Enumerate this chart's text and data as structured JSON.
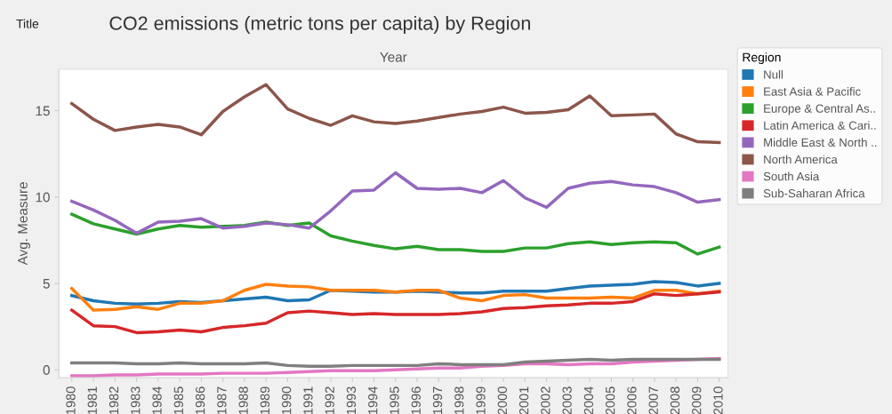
{
  "chart_data": {
    "type": "line",
    "title": "CO2 emissions (metric tons per capita) by Region",
    "xlabel": "Year",
    "ylabel": "Avg. Measure",
    "legend_title": "Region",
    "annotations": [
      "Title"
    ],
    "categories": [
      "1980",
      "1981",
      "1982",
      "1983",
      "1984",
      "1985",
      "1986",
      "1987",
      "1988",
      "1989",
      "1990",
      "1991",
      "1992",
      "1993",
      "1994",
      "1995",
      "1996",
      "1997",
      "1998",
      "1999",
      "2000",
      "2001",
      "2002",
      "2003",
      "2004",
      "2005",
      "2006",
      "2007",
      "2008",
      "2009",
      "2010"
    ],
    "ylim": [
      -0.45,
      17.4
    ],
    "yticks": [
      0,
      5,
      10,
      15
    ],
    "grid": false,
    "legend": "right",
    "marker": "none",
    "line_style": "solid",
    "series": [
      {
        "name": "Null",
        "color": "#1f77b4",
        "values": [
          4.3,
          4.0,
          3.85,
          3.8,
          3.85,
          3.95,
          3.9,
          4.0,
          4.1,
          4.2,
          4.0,
          4.05,
          4.6,
          4.55,
          4.5,
          4.5,
          4.55,
          4.5,
          4.45,
          4.45,
          4.55,
          4.55,
          4.55,
          4.7,
          4.85,
          4.9,
          4.95,
          5.1,
          5.05,
          4.85,
          5.0
        ]
      },
      {
        "name": "East Asia & Pacific",
        "color": "#ff7f0e",
        "values": [
          4.7,
          3.45,
          3.5,
          3.65,
          3.5,
          3.85,
          3.85,
          4.0,
          4.6,
          4.95,
          4.85,
          4.8,
          4.6,
          4.6,
          4.6,
          4.5,
          4.6,
          4.6,
          4.15,
          4.0,
          4.3,
          4.35,
          4.15,
          4.15,
          4.15,
          4.2,
          4.15,
          4.6,
          4.6,
          4.4,
          4.55
        ]
      },
      {
        "name": "Europe & Central As..",
        "color": "#2ca02c",
        "values": [
          9.0,
          8.45,
          8.15,
          7.85,
          8.15,
          8.35,
          8.25,
          8.3,
          8.35,
          8.55,
          8.35,
          8.5,
          7.75,
          7.45,
          7.2,
          7.0,
          7.15,
          6.95,
          6.95,
          6.85,
          6.85,
          7.05,
          7.05,
          7.3,
          7.4,
          7.25,
          7.35,
          7.4,
          7.35,
          6.7,
          7.1
        ]
      },
      {
        "name": "Latin America & Cari..",
        "color": "#d62728",
        "values": [
          3.45,
          2.55,
          2.5,
          2.15,
          2.2,
          2.3,
          2.2,
          2.45,
          2.55,
          2.7,
          3.3,
          3.4,
          3.3,
          3.2,
          3.25,
          3.2,
          3.2,
          3.2,
          3.25,
          3.35,
          3.55,
          3.6,
          3.7,
          3.75,
          3.85,
          3.85,
          3.95,
          4.4,
          4.3,
          4.4,
          4.5
        ]
      },
      {
        "name": "Middle East & North ..",
        "color": "#9467bd",
        "values": [
          9.75,
          9.25,
          8.65,
          7.9,
          8.55,
          8.6,
          8.75,
          8.2,
          8.3,
          8.5,
          8.4,
          8.2,
          9.2,
          10.35,
          10.4,
          11.4,
          10.5,
          10.45,
          10.5,
          10.25,
          10.95,
          9.95,
          9.4,
          10.5,
          10.8,
          10.9,
          10.7,
          10.6,
          10.25,
          9.7,
          9.85
        ]
      },
      {
        "name": "North America",
        "color": "#8c564b",
        "values": [
          15.4,
          14.5,
          13.85,
          14.05,
          14.2,
          14.05,
          13.6,
          14.95,
          15.8,
          16.5,
          15.1,
          14.55,
          14.15,
          14.7,
          14.35,
          14.25,
          14.4,
          14.6,
          14.8,
          14.95,
          15.2,
          14.85,
          14.9,
          15.05,
          15.85,
          14.7,
          14.75,
          14.8,
          13.65,
          13.2,
          13.15
        ]
      },
      {
        "name": "South Asia",
        "color": "#e377c2",
        "values": [
          -0.35,
          -0.35,
          -0.3,
          -0.3,
          -0.25,
          -0.25,
          -0.25,
          -0.2,
          -0.2,
          -0.2,
          -0.15,
          -0.1,
          -0.05,
          -0.05,
          -0.05,
          0,
          0.05,
          0.1,
          0.1,
          0.2,
          0.25,
          0.35,
          0.35,
          0.3,
          0.35,
          0.35,
          0.45,
          0.5,
          0.55,
          0.6,
          0.65
        ]
      },
      {
        "name": "Sub-Saharan Africa",
        "color": "#7f7f7f",
        "values": [
          0.4,
          0.4,
          0.4,
          0.35,
          0.35,
          0.4,
          0.35,
          0.35,
          0.35,
          0.4,
          0.25,
          0.2,
          0.2,
          0.25,
          0.25,
          0.25,
          0.25,
          0.35,
          0.3,
          0.3,
          0.3,
          0.45,
          0.5,
          0.55,
          0.6,
          0.55,
          0.6,
          0.6,
          0.6,
          0.6,
          0.6
        ]
      }
    ]
  }
}
